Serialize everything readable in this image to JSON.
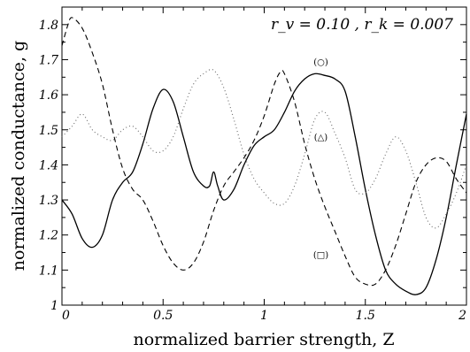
{
  "chart_data": {
    "type": "line",
    "xlabel": "normalized barrier strength,  Z",
    "ylabel": "normalized conductance,  g",
    "xlim": [
      0,
      2
    ],
    "ylim": [
      1,
      1.85
    ],
    "xticks": [
      0,
      0.5,
      1,
      1.5,
      2
    ],
    "xtick_labels": [
      "0",
      "0.5",
      "1",
      "1.5",
      "2"
    ],
    "yticks": [
      1,
      1.1,
      1.2,
      1.3,
      1.4,
      1.5,
      1.6,
      1.7,
      1.8
    ],
    "ytick_labels": [
      "1",
      "1.1",
      "1.2",
      "1.3",
      "1.4",
      "1.5",
      "1.6",
      "1.7",
      "1.8"
    ],
    "grid": false,
    "annotation": "r_v = 0.10 ,  r_k = 0.007",
    "series": [
      {
        "label": "(○)",
        "style": "solid",
        "points": [
          [
            0,
            1.3
          ],
          [
            0.05,
            1.26
          ],
          [
            0.1,
            1.19
          ],
          [
            0.15,
            1.165
          ],
          [
            0.2,
            1.2
          ],
          [
            0.25,
            1.3
          ],
          [
            0.3,
            1.35
          ],
          [
            0.35,
            1.38
          ],
          [
            0.4,
            1.46
          ],
          [
            0.45,
            1.56
          ],
          [
            0.5,
            1.615
          ],
          [
            0.55,
            1.58
          ],
          [
            0.6,
            1.48
          ],
          [
            0.65,
            1.38
          ],
          [
            0.7,
            1.34
          ],
          [
            0.73,
            1.34
          ],
          [
            0.75,
            1.38
          ],
          [
            0.77,
            1.34
          ],
          [
            0.8,
            1.3
          ],
          [
            0.85,
            1.33
          ],
          [
            0.9,
            1.4
          ],
          [
            0.95,
            1.455
          ],
          [
            1.0,
            1.48
          ],
          [
            1.05,
            1.5
          ],
          [
            1.1,
            1.55
          ],
          [
            1.15,
            1.61
          ],
          [
            1.2,
            1.645
          ],
          [
            1.25,
            1.66
          ],
          [
            1.3,
            1.655
          ],
          [
            1.35,
            1.645
          ],
          [
            1.4,
            1.61
          ],
          [
            1.45,
            1.48
          ],
          [
            1.5,
            1.33
          ],
          [
            1.55,
            1.2
          ],
          [
            1.6,
            1.1
          ],
          [
            1.65,
            1.06
          ],
          [
            1.7,
            1.04
          ],
          [
            1.75,
            1.03
          ],
          [
            1.8,
            1.05
          ],
          [
            1.85,
            1.13
          ],
          [
            1.9,
            1.25
          ],
          [
            1.95,
            1.4
          ],
          [
            2.0,
            1.545
          ]
        ]
      },
      {
        "label": "(△)",
        "style": "dotted",
        "points": [
          [
            0,
            1.48
          ],
          [
            0.05,
            1.51
          ],
          [
            0.1,
            1.545
          ],
          [
            0.15,
            1.5
          ],
          [
            0.2,
            1.48
          ],
          [
            0.25,
            1.47
          ],
          [
            0.3,
            1.5
          ],
          [
            0.35,
            1.51
          ],
          [
            0.4,
            1.48
          ],
          [
            0.45,
            1.44
          ],
          [
            0.5,
            1.44
          ],
          [
            0.55,
            1.48
          ],
          [
            0.6,
            1.56
          ],
          [
            0.65,
            1.63
          ],
          [
            0.7,
            1.66
          ],
          [
            0.75,
            1.67
          ],
          [
            0.8,
            1.62
          ],
          [
            0.85,
            1.53
          ],
          [
            0.9,
            1.43
          ],
          [
            0.95,
            1.36
          ],
          [
            1.0,
            1.32
          ],
          [
            1.05,
            1.29
          ],
          [
            1.1,
            1.29
          ],
          [
            1.15,
            1.34
          ],
          [
            1.2,
            1.43
          ],
          [
            1.25,
            1.53
          ],
          [
            1.3,
            1.55
          ],
          [
            1.35,
            1.49
          ],
          [
            1.4,
            1.42
          ],
          [
            1.45,
            1.33
          ],
          [
            1.5,
            1.32
          ],
          [
            1.55,
            1.36
          ],
          [
            1.6,
            1.43
          ],
          [
            1.65,
            1.48
          ],
          [
            1.7,
            1.44
          ],
          [
            1.75,
            1.35
          ],
          [
            1.8,
            1.25
          ],
          [
            1.85,
            1.22
          ],
          [
            1.9,
            1.26
          ],
          [
            1.95,
            1.32
          ],
          [
            2.0,
            1.4
          ]
        ]
      },
      {
        "label": "(□)",
        "style": "dashed",
        "points": [
          [
            0,
            1.74
          ],
          [
            0.03,
            1.8
          ],
          [
            0.05,
            1.82
          ],
          [
            0.1,
            1.79
          ],
          [
            0.15,
            1.72
          ],
          [
            0.2,
            1.63
          ],
          [
            0.25,
            1.5
          ],
          [
            0.3,
            1.39
          ],
          [
            0.35,
            1.33
          ],
          [
            0.4,
            1.3
          ],
          [
            0.45,
            1.24
          ],
          [
            0.5,
            1.17
          ],
          [
            0.55,
            1.12
          ],
          [
            0.6,
            1.1
          ],
          [
            0.65,
            1.12
          ],
          [
            0.7,
            1.18
          ],
          [
            0.75,
            1.27
          ],
          [
            0.8,
            1.34
          ],
          [
            0.85,
            1.38
          ],
          [
            0.9,
            1.42
          ],
          [
            0.95,
            1.47
          ],
          [
            1.0,
            1.54
          ],
          [
            1.05,
            1.63
          ],
          [
            1.08,
            1.665
          ],
          [
            1.1,
            1.66
          ],
          [
            1.15,
            1.58
          ],
          [
            1.2,
            1.46
          ],
          [
            1.25,
            1.36
          ],
          [
            1.3,
            1.28
          ],
          [
            1.35,
            1.21
          ],
          [
            1.4,
            1.14
          ],
          [
            1.45,
            1.08
          ],
          [
            1.5,
            1.06
          ],
          [
            1.55,
            1.06
          ],
          [
            1.6,
            1.1
          ],
          [
            1.65,
            1.17
          ],
          [
            1.7,
            1.26
          ],
          [
            1.75,
            1.35
          ],
          [
            1.8,
            1.4
          ],
          [
            1.85,
            1.42
          ],
          [
            1.9,
            1.41
          ],
          [
            1.95,
            1.36
          ],
          [
            2.0,
            1.32
          ]
        ]
      }
    ]
  }
}
